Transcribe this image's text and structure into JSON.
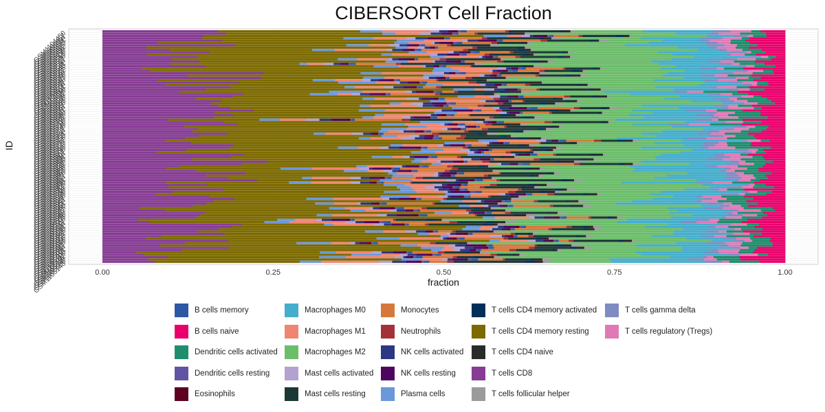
{
  "chart_data": {
    "type": "bar",
    "orientation": "horizontal",
    "stacked": true,
    "title": "CIBERSORT Cell Fraction",
    "xlabel": "fraction",
    "ylabel": "ID",
    "xlim": [
      0,
      1
    ],
    "x_ticks": [
      "0.00",
      "0.25",
      "0.50",
      "0.75",
      "1.00"
    ],
    "x_tick_values": [
      0,
      0.25,
      0.5,
      0.75,
      1.0
    ],
    "sample_count": 100,
    "sample_label_prefix": "GSM",
    "grid": true,
    "legend_position": "bottom",
    "legend_columns": 5,
    "categories": [
      "B cells memory",
      "B cells naive",
      "Dendritic cells activated",
      "Dendritic cells resting",
      "Eosinophils",
      "Macrophages M0",
      "Macrophages M1",
      "Macrophages M2",
      "Mast cells activated",
      "Mast cells resting",
      "Monocytes",
      "Neutrophils",
      "NK cells activated",
      "NK cells resting",
      "Plasma cells",
      "T cells CD4 memory activated",
      "T cells CD4 memory resting",
      "T cells CD4 naive",
      "T cells CD8",
      "T cells follicular helper",
      "T cells gamma delta",
      "T cells regulatory (Tregs)"
    ],
    "colors": [
      "#2d58a3",
      "#e9006c",
      "#1f8d6c",
      "#6154a5",
      "#5d0021",
      "#44aecd",
      "#ef8671",
      "#6bbd6a",
      "#b3a2cf",
      "#1c3834",
      "#d6783b",
      "#a33238",
      "#2d3680",
      "#4d065f",
      "#6a98d9",
      "#00305a",
      "#7c6a00",
      "#2a2a2a",
      "#863c93",
      "#9b9b9b",
      "#7e8cc4",
      "#e07ab7"
    ],
    "mean_fractions": {
      "B cells memory": 0.005,
      "B cells naive": 0.035,
      "Dendritic cells activated": 0.025,
      "Dendritic cells resting": 0.004,
      "Eosinophils": 0.004,
      "Macrophages M0": 0.07,
      "Macrophages M1": 0.04,
      "Macrophages M2": 0.15,
      "Mast cells activated": 0.01,
      "Mast cells resting": 0.05,
      "Monocytes": 0.04,
      "Neutrophils": 0.006,
      "NK cells activated": 0.01,
      "NK cells resting": 0.012,
      "Plasma cells": 0.025,
      "T cells CD4 memory activated": 0.006,
      "T cells CD4 memory resting": 0.26,
      "T cells CD4 naive": 0.01,
      "T cells CD8": 0.13,
      "T cells follicular helper": 0.008,
      "T cells gamma delta": 0.015,
      "T cells regulatory (Tregs)": 0.02
    },
    "stack_order": [
      18,
      16,
      14,
      6,
      8,
      12,
      13,
      4,
      3,
      0,
      10,
      11,
      9,
      15,
      17,
      19,
      7,
      5,
      20,
      21,
      2,
      1
    ]
  }
}
